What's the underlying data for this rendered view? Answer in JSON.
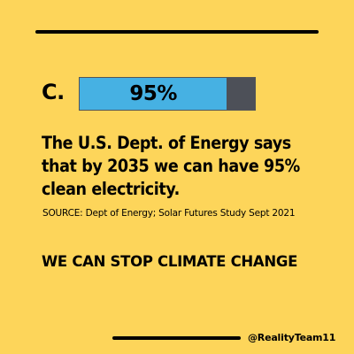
{
  "option": {
    "letter": "C."
  },
  "progress": {
    "label": "95%",
    "value_percent": 95,
    "fill_color": "#46b1e3",
    "track_color": "#4d5058"
  },
  "headline": "The U.S. Dept. of Energy says that by 2035 we can have 95% clean electricity.",
  "source": "SOURCE: Dept of Energy; Solar Futures Study Sept 2021",
  "slogan": "WE CAN STOP CLIMATE CHANGE",
  "footer": {
    "handle": "@RealityTeam11"
  },
  "colors": {
    "background": "#fdd55a",
    "text": "#000000"
  }
}
